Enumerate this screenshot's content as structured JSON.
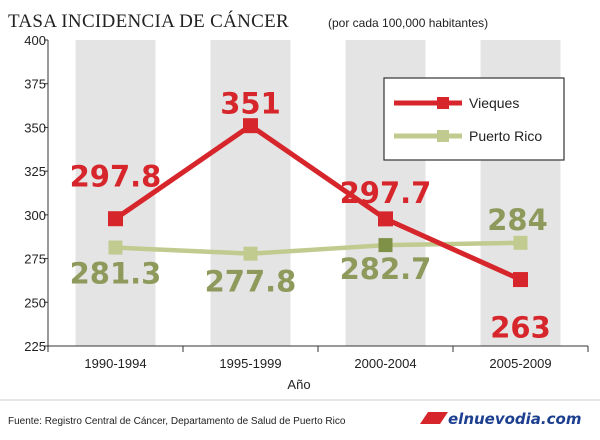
{
  "chart_data": {
    "type": "line",
    "title": "TASA INCIDENCIA DE CÁNCER",
    "subtitle": "(por cada 100,000 habitantes)",
    "xlabel": "Año",
    "ylabel": "",
    "ylim": [
      225,
      400
    ],
    "yticks": [
      "225",
      "250",
      "275",
      "300",
      "325",
      "350",
      "375",
      "400"
    ],
    "categories": [
      "1990-1994",
      "1995-1999",
      "2000-2004",
      "2005-2009"
    ],
    "series": [
      {
        "name": "Vieques",
        "color": "#d7262b",
        "values": [
          297.8,
          351,
          297.7,
          263
        ],
        "labels": [
          "297.8",
          "351",
          "297.7",
          "263"
        ]
      },
      {
        "name": "Puerto Rico",
        "color": "#c1cb8f",
        "label_color": "#8e9a5c",
        "highlight_color": "#7f9146",
        "highlight_index": 2,
        "values": [
          281.3,
          277.8,
          282.7,
          284
        ],
        "labels": [
          "281.3",
          "277.8",
          "282.7",
          "284"
        ]
      }
    ],
    "legend_position": "top-right",
    "grid": false
  },
  "footer": {
    "source": "Fuente: Registro Central de Cáncer, Departamento de Salud de Puerto Rico",
    "brand": "elnuevodia.com"
  }
}
